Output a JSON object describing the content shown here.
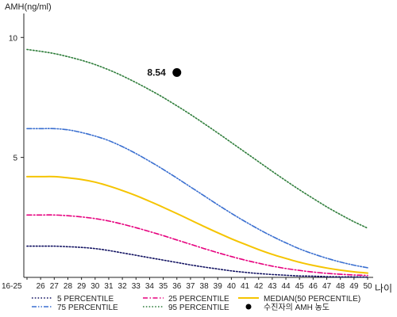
{
  "chart_data": {
    "type": "line",
    "ylabel": "AMH(ng/ml)",
    "xlabel": "나이",
    "ylim": [
      0,
      11
    ],
    "y_ticks": [
      5,
      10
    ],
    "grid": false,
    "legend_position": "bottom",
    "categories": [
      "16-25",
      "26",
      "27",
      "28",
      "29",
      "30",
      "31",
      "32",
      "33",
      "34",
      "35",
      "36",
      "37",
      "38",
      "39",
      "40",
      "41",
      "42",
      "43",
      "44",
      "45",
      "46",
      "47",
      "48",
      "49",
      "50"
    ],
    "series": [
      {
        "name": "5 PERCENTILE",
        "color": "#101060",
        "dash": "dotted",
        "values": [
          1.3,
          1.3,
          1.3,
          1.28,
          1.25,
          1.2,
          1.12,
          1.02,
          0.92,
          0.82,
          0.72,
          0.62,
          0.52,
          0.43,
          0.35,
          0.27,
          0.21,
          0.16,
          0.12,
          0.09,
          0.06,
          0.05,
          0.03,
          0.02,
          0.02,
          0.01
        ]
      },
      {
        "name": "25 PERCENTILE",
        "color": "#e6007e",
        "dash": "dash-dot",
        "values": [
          2.6,
          2.6,
          2.6,
          2.57,
          2.52,
          2.45,
          2.35,
          2.22,
          2.07,
          1.91,
          1.74,
          1.56,
          1.38,
          1.2,
          1.03,
          0.87,
          0.72,
          0.59,
          0.47,
          0.37,
          0.29,
          0.22,
          0.17,
          0.13,
          0.1,
          0.08
        ]
      },
      {
        "name": "MEDIAN(50 PERCENTILE)",
        "color": "#f5c400",
        "dash": "solid",
        "values": [
          4.2,
          4.2,
          4.2,
          4.15,
          4.08,
          3.97,
          3.81,
          3.62,
          3.41,
          3.17,
          2.92,
          2.66,
          2.39,
          2.12,
          1.86,
          1.61,
          1.38,
          1.16,
          0.96,
          0.79,
          0.63,
          0.5,
          0.39,
          0.3,
          0.23,
          0.18
        ]
      },
      {
        "name": "75 PERCENTILE",
        "color": "#3a6fd0",
        "dash": "dash-dot-dot",
        "values": [
          6.2,
          6.2,
          6.2,
          6.15,
          6.04,
          5.89,
          5.7,
          5.45,
          5.16,
          4.84,
          4.5,
          4.14,
          3.77,
          3.4,
          3.03,
          2.67,
          2.33,
          2.01,
          1.71,
          1.44,
          1.19,
          0.98,
          0.8,
          0.64,
          0.51,
          0.4
        ]
      },
      {
        "name": "95 PERCENTILE",
        "color": "#2e7d3a",
        "dash": "dotted",
        "values": [
          9.5,
          9.42,
          9.33,
          9.2,
          9.05,
          8.87,
          8.65,
          8.4,
          8.12,
          7.82,
          7.5,
          7.15,
          6.79,
          6.41,
          6.02,
          5.62,
          5.22,
          4.82,
          4.42,
          4.03,
          3.65,
          3.29,
          2.94,
          2.62,
          2.32,
          2.05
        ]
      }
    ],
    "points": [
      {
        "name": "수진자의 AMH 농도",
        "x": "36",
        "y": 8.54,
        "label": "8.54",
        "color": "#000000"
      }
    ]
  }
}
